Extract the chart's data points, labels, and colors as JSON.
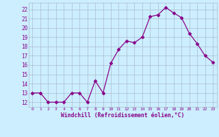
{
  "x": [
    0,
    1,
    2,
    3,
    4,
    5,
    6,
    7,
    8,
    9,
    10,
    11,
    12,
    13,
    14,
    15,
    16,
    17,
    18,
    19,
    20,
    21,
    22,
    23
  ],
  "y": [
    13,
    13,
    12,
    12,
    12,
    13,
    13,
    12,
    14.3,
    13,
    16.2,
    17.7,
    18.6,
    18.4,
    19,
    21.2,
    21.4,
    22.2,
    21.6,
    21.1,
    19.4,
    18.3,
    17,
    16.3
  ],
  "line_color": "#880088",
  "marker": "D",
  "marker_size": 2.5,
  "bg_color": "#cceeff",
  "grid_color": "#aabbcc",
  "xlabel": "Windchill (Refroidissement éolien,°C)",
  "xlabel_color": "#880088",
  "ylabel_ticks": [
    12,
    13,
    14,
    15,
    16,
    17,
    18,
    19,
    20,
    21,
    22
  ],
  "ylim": [
    11.5,
    22.7
  ],
  "xlim": [
    -0.5,
    23.5
  ],
  "xtick_labels": [
    "0",
    "1",
    "2",
    "3",
    "4",
    "5",
    "6",
    "7",
    "8",
    "9",
    "10",
    "11",
    "12",
    "13",
    "14",
    "15",
    "16",
    "17",
    "18",
    "19",
    "20",
    "21",
    "22",
    "23"
  ]
}
